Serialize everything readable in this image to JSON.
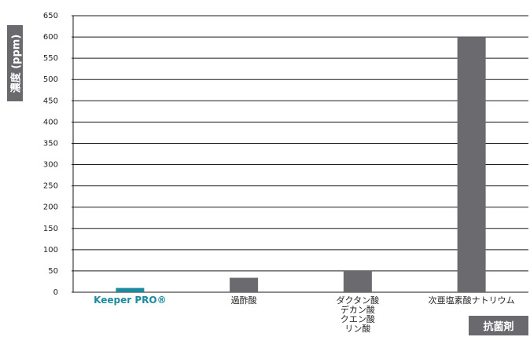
{
  "chart_data": {
    "type": "bar",
    "ylabel": "濃度 (ppm)",
    "xlabel": "抗菌剤",
    "ylim": [
      0,
      650
    ],
    "yticks": [
      0,
      50,
      100,
      150,
      200,
      250,
      300,
      350,
      400,
      450,
      500,
      550,
      600,
      650
    ],
    "grid": true,
    "categories": [
      {
        "label": "Keeper PRO®",
        "lines": [
          "Keeper PRO®"
        ],
        "value": 10,
        "highlight": true
      },
      {
        "label": "過酢酸",
        "lines": [
          "過酢酸"
        ],
        "value": 34,
        "highlight": false
      },
      {
        "label": "ダクタン酸 デカン酸 クエン酸 リン酸",
        "lines": [
          "ダクタン酸",
          "デカン酸",
          "クエン酸",
          "リン酸"
        ],
        "value": 50,
        "highlight": false
      },
      {
        "label": "次亜塩素酸ナトリウム",
        "lines": [
          "次亜塩素酸ナトリウム"
        ],
        "value": 600,
        "highlight": false
      }
    ],
    "colors": {
      "bar": "#6b6b6f",
      "highlight": "#1d8a9e",
      "grid": "#1a1a1a",
      "text": "#222222",
      "box": "#6a6a6e"
    }
  }
}
